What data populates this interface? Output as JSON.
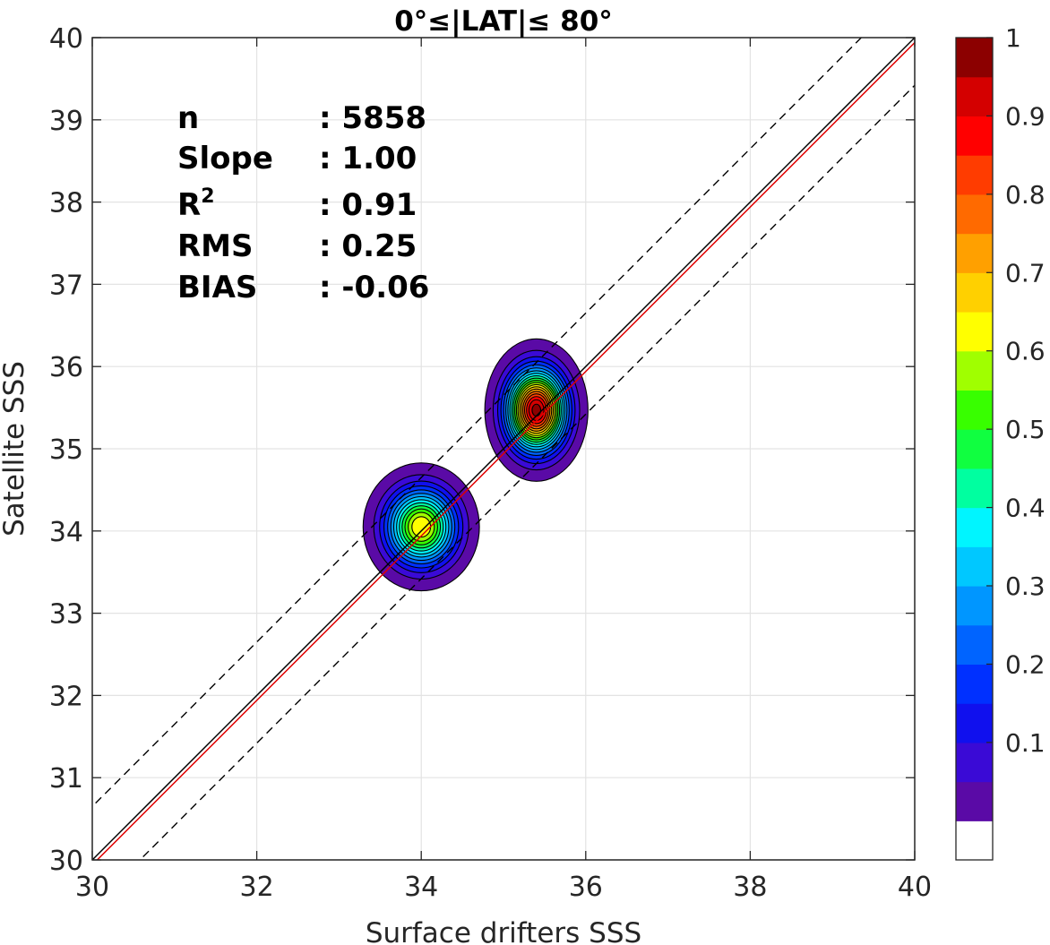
{
  "chart_data": {
    "type": "contour_density_scatter",
    "title": "0°≤|LAT|≤ 80°",
    "xlabel": "Surface drifters SSS",
    "ylabel": "Satellite SSS",
    "xlim": [
      30,
      40
    ],
    "ylim": [
      30,
      40
    ],
    "xticks": [
      "30",
      "32",
      "34",
      "36",
      "38",
      "40"
    ],
    "yticks": [
      "30",
      "31",
      "32",
      "33",
      "34",
      "35",
      "36",
      "37",
      "38",
      "39",
      "40"
    ],
    "grid": true,
    "stats": [
      {
        "label": "n",
        "value": ": 5858"
      },
      {
        "label": "Slope",
        "value": ": 1.00"
      },
      {
        "label": "R",
        "sup": "2",
        "value": ": 0.91"
      },
      {
        "label": "RMS",
        "value": ": 0.25"
      },
      {
        "label": "BIAS",
        "value": ": -0.06"
      }
    ],
    "lines": [
      {
        "kind": "identity",
        "color": "#000000",
        "style": "solid",
        "slope": 1,
        "intercept": 0
      },
      {
        "kind": "fit",
        "color": "#e00000",
        "style": "solid",
        "slope": 1.0,
        "intercept": -0.06
      },
      {
        "kind": "upper",
        "color": "#000000",
        "style": "dashed",
        "slope": 1,
        "intercept": 0.65
      },
      {
        "kind": "lower",
        "color": "#000000",
        "style": "dashed",
        "slope": 1,
        "intercept": -0.58
      }
    ],
    "clusters": [
      {
        "x": 35.4,
        "y": 35.47,
        "peak": 1.0,
        "sx": 0.42,
        "sy": 0.58
      },
      {
        "x": 34.0,
        "y": 34.05,
        "peak": 0.68,
        "sx": 0.5,
        "sy": 0.55
      }
    ],
    "colorbar": {
      "ticks": [
        "0.1",
        "0.2",
        "0.3",
        "0.4",
        "0.5",
        "0.6",
        "0.7",
        "0.8",
        "0.9",
        "1"
      ],
      "tick_values": [
        0.1,
        0.2,
        0.3,
        0.4,
        0.5,
        0.6,
        0.7,
        0.8,
        0.9,
        1.0
      ],
      "range": [
        0,
        1
      ],
      "levels": 20,
      "colors": [
        "#ffffff",
        "#5a0aa6",
        "#3a0ad6",
        "#1010ee",
        "#0030ff",
        "#0064ff",
        "#0096ff",
        "#00c8ff",
        "#00f5ff",
        "#00ffa0",
        "#10ff40",
        "#38ff00",
        "#a0ff00",
        "#ffff00",
        "#ffd000",
        "#ffa000",
        "#ff6a00",
        "#ff3c00",
        "#ff0000",
        "#d40000",
        "#8c0000"
      ]
    }
  }
}
